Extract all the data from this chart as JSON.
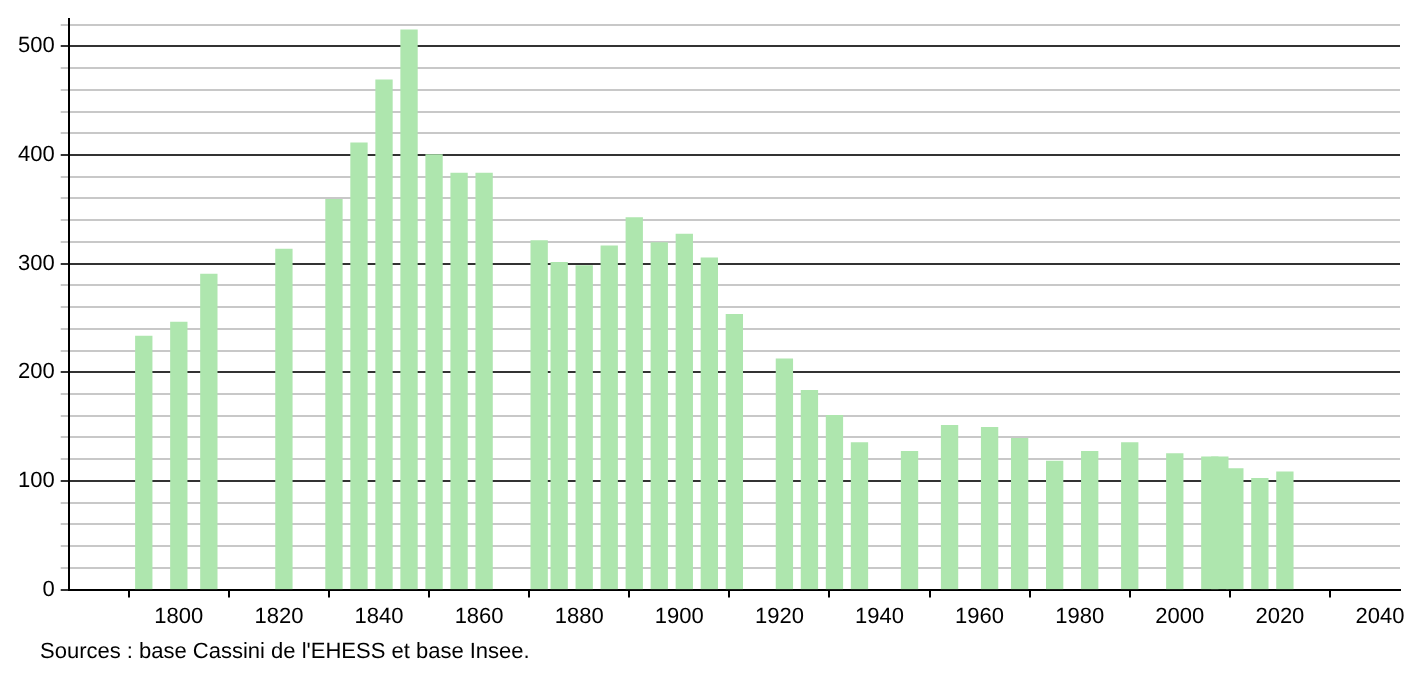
{
  "chart_data": {
    "type": "bar",
    "x": [
      1793,
      1800,
      1806,
      1821,
      1831,
      1836,
      1841,
      1846,
      1851,
      1856,
      1861,
      1872,
      1876,
      1881,
      1886,
      1891,
      1896,
      1901,
      1906,
      1911,
      1921,
      1926,
      1931,
      1936,
      1946,
      1954,
      1962,
      1968,
      1975,
      1982,
      1990,
      1999,
      2006,
      2008,
      2011,
      2016,
      2021
    ],
    "values": [
      233,
      246,
      290,
      313,
      359,
      411,
      469,
      515,
      400,
      383,
      383,
      321,
      301,
      298,
      316,
      342,
      319,
      327,
      305,
      253,
      212,
      183,
      160,
      135,
      127,
      151,
      149,
      139,
      118,
      127,
      135,
      125,
      122,
      122,
      111,
      102,
      108
    ],
    "color": "#aee6ae",
    "xlim": [
      1778,
      2044
    ],
    "xticks": [
      1800,
      1820,
      1840,
      1860,
      1880,
      1900,
      1920,
      1940,
      1960,
      1980,
      2000,
      2020,
      2040
    ],
    "ylim": [
      0,
      525
    ],
    "yticks": [
      0,
      {
        "value": 20,
        "label": null
      },
      {
        "value": 40,
        "label": null
      },
      {
        "value": 60,
        "label": null
      },
      {
        "value": 80,
        "label": null
      },
      100,
      {
        "value": 120,
        "label": null
      },
      {
        "value": 140,
        "label": null
      },
      {
        "value": 160,
        "label": null
      },
      {
        "value": 180,
        "label": null
      },
      200,
      {
        "value": 220,
        "label": null
      },
      {
        "value": 240,
        "label": null
      },
      {
        "value": 260,
        "label": null
      },
      {
        "value": 280,
        "label": null
      },
      300,
      {
        "value": 320,
        "label": null
      },
      {
        "value": 340,
        "label": null
      },
      {
        "value": 360,
        "label": null
      },
      {
        "value": 380,
        "label": null
      },
      400,
      {
        "value": 420,
        "label": null
      },
      {
        "value": 440,
        "label": null
      },
      {
        "value": 460,
        "label": null
      },
      {
        "value": 480,
        "label": null
      },
      500,
      {
        "value": 520,
        "label": null
      }
    ],
    "grid": "y",
    "legend": false,
    "annotations": [
      "Sources : base Cassini de l'EHESS et base Insee."
    ]
  }
}
